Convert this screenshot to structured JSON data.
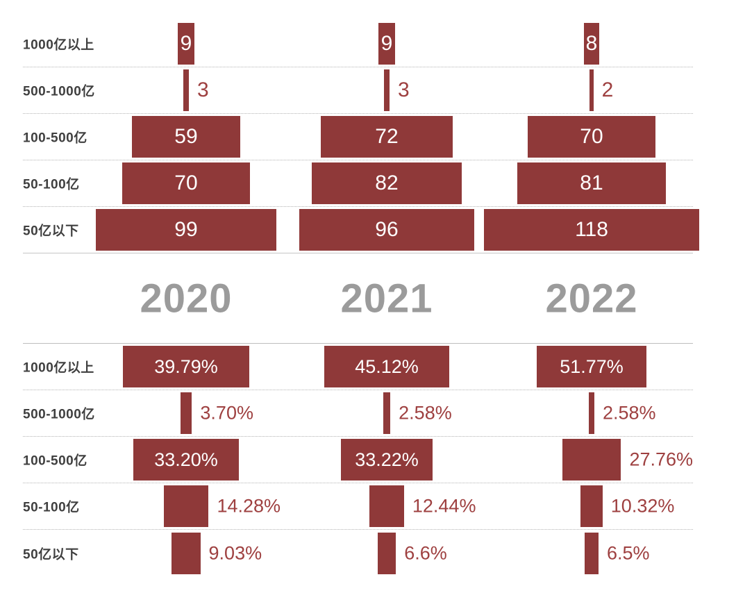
{
  "chart_data": [
    {
      "type": "bar",
      "orientation": "horizontal-centered-pyramid",
      "title": "",
      "xlabel": "",
      "ylabel": "",
      "grid": "dotted-row-separators",
      "categories": [
        "1000亿以上",
        "500-1000亿",
        "100-500亿",
        "50-100亿",
        "50亿以下"
      ],
      "series": [
        {
          "name": "2020",
          "values": [
            9,
            3,
            59,
            70,
            99
          ]
        },
        {
          "name": "2021",
          "values": [
            9,
            3,
            72,
            82,
            96
          ]
        },
        {
          "name": "2022",
          "values": [
            8,
            2,
            70,
            81,
            118
          ]
        }
      ]
    },
    {
      "type": "bar",
      "orientation": "horizontal-centered-pyramid",
      "title": "",
      "xlabel": "",
      "ylabel": "",
      "grid": "dotted-row-separators",
      "categories": [
        "1000亿以上",
        "500-1000亿",
        "100-500亿",
        "50-100亿",
        "50亿以下"
      ],
      "series": [
        {
          "name": "2020",
          "values": [
            39.79,
            3.7,
            33.2,
            14.28,
            9.03
          ],
          "labels": [
            "39.79%",
            "3.70%",
            "33.20%",
            "14.28%",
            "9.03%"
          ]
        },
        {
          "name": "2021",
          "values": [
            45.12,
            2.58,
            33.22,
            12.44,
            6.6
          ],
          "labels": [
            "45.12%",
            "2.58%",
            "33.22%",
            "12.44%",
            "6.6%"
          ]
        },
        {
          "name": "2022",
          "values": [
            51.77,
            2.58,
            27.76,
            10.32,
            6.5
          ],
          "labels": [
            "51.77%",
            "2.58%",
            "27.76%",
            "10.32%",
            "6.5%"
          ]
        }
      ]
    }
  ],
  "years": [
    "2020",
    "2021",
    "2022"
  ],
  "colors": {
    "bar": "#8F3939",
    "value_inside": "#FFFFFF",
    "value_outside": "#9E4040",
    "category_label": "#3F3F3F",
    "year_label": "#9B9B9B",
    "separator": "#B3B3B3"
  }
}
